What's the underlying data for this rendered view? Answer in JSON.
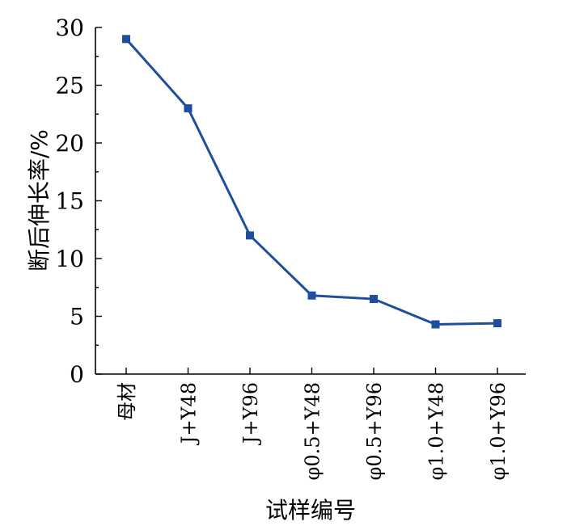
{
  "chart_data": {
    "type": "line",
    "title": "",
    "xlabel": "试样编号",
    "ylabel": "断后伸长率/%",
    "categories": [
      "母材",
      "J+Y48",
      "J+Y96",
      "φ0.5+Y48",
      "φ0.5+Y96",
      "φ1.0+Y48",
      "φ1.0+Y96"
    ],
    "series": [
      {
        "values": [
          29.0,
          23.0,
          12.0,
          6.8,
          6.5,
          4.3,
          4.4
        ]
      }
    ],
    "ylim": [
      0,
      30
    ],
    "yticks": [
      0,
      5,
      10,
      15,
      20,
      25,
      30
    ],
    "grid": false,
    "legend": "none",
    "colors": {
      "series": "#1f4e9e",
      "marker": "#1f4e9e",
      "axis": "#000000"
    }
  }
}
